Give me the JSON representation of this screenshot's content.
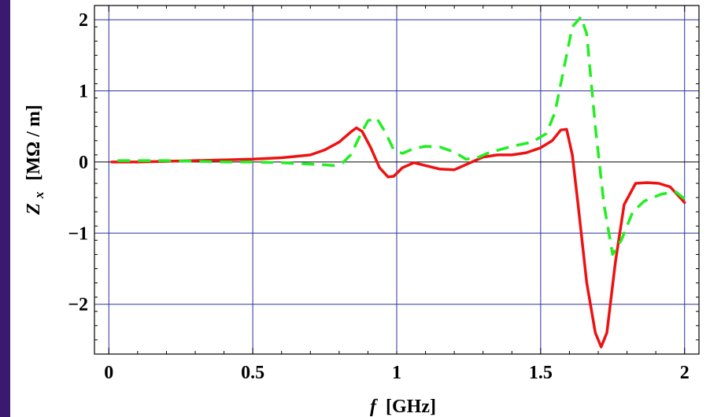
{
  "chart_data": {
    "type": "line",
    "xlabel": {
      "symbol": "f",
      "unit": "[GHz]"
    },
    "ylabel": {
      "symbol": "Z",
      "subscript": "x",
      "unit": "[MΩ / m]"
    },
    "xlim": [
      -0.05,
      2.05
    ],
    "ylim": [
      -2.7,
      2.2
    ],
    "x_ticks": [
      {
        "value": 0,
        "label": "0"
      },
      {
        "value": 0.5,
        "label": "0.5"
      },
      {
        "value": 1,
        "label": "1"
      },
      {
        "value": 1.5,
        "label": "1.5"
      },
      {
        "value": 2,
        "label": "2"
      }
    ],
    "y_ticks": [
      {
        "value": 2,
        "label": "2"
      },
      {
        "value": 1,
        "label": "1"
      },
      {
        "value": 0,
        "label": "0"
      },
      {
        "value": -1,
        "label": "−1"
      },
      {
        "value": -2,
        "label": "−2"
      }
    ],
    "grid": true,
    "series": [
      {
        "color": "#ee1111",
        "style": "solid",
        "points": [
          [
            0.01,
            0.0
          ],
          [
            0.1,
            0.0
          ],
          [
            0.2,
            0.01
          ],
          [
            0.3,
            0.02
          ],
          [
            0.4,
            0.03
          ],
          [
            0.5,
            0.04
          ],
          [
            0.55,
            0.05
          ],
          [
            0.6,
            0.06
          ],
          [
            0.65,
            0.08
          ],
          [
            0.7,
            0.1
          ],
          [
            0.75,
            0.17
          ],
          [
            0.8,
            0.28
          ],
          [
            0.84,
            0.42
          ],
          [
            0.86,
            0.48
          ],
          [
            0.88,
            0.43
          ],
          [
            0.91,
            0.2
          ],
          [
            0.94,
            -0.08
          ],
          [
            0.97,
            -0.21
          ],
          [
            0.99,
            -0.2
          ],
          [
            1.02,
            -0.08
          ],
          [
            1.06,
            -0.01
          ],
          [
            1.1,
            -0.05
          ],
          [
            1.15,
            -0.1
          ],
          [
            1.2,
            -0.11
          ],
          [
            1.25,
            -0.02
          ],
          [
            1.3,
            0.07
          ],
          [
            1.35,
            0.1
          ],
          [
            1.4,
            0.1
          ],
          [
            1.45,
            0.13
          ],
          [
            1.5,
            0.2
          ],
          [
            1.54,
            0.3
          ],
          [
            1.57,
            0.45
          ],
          [
            1.59,
            0.46
          ],
          [
            1.61,
            0.1
          ],
          [
            1.63,
            -0.6
          ],
          [
            1.66,
            -1.7
          ],
          [
            1.69,
            -2.4
          ],
          [
            1.71,
            -2.6
          ],
          [
            1.73,
            -2.4
          ],
          [
            1.76,
            -1.4
          ],
          [
            1.79,
            -0.6
          ],
          [
            1.83,
            -0.3
          ],
          [
            1.87,
            -0.29
          ],
          [
            1.91,
            -0.3
          ],
          [
            1.95,
            -0.35
          ],
          [
            2.0,
            -0.57
          ]
        ]
      },
      {
        "color": "#22ee22",
        "style": "dashed",
        "points": [
          [
            0.03,
            0.02
          ],
          [
            0.1,
            0.02
          ],
          [
            0.2,
            0.02
          ],
          [
            0.3,
            0.01
          ],
          [
            0.4,
            0.0
          ],
          [
            0.5,
            0.0
          ],
          [
            0.6,
            -0.01
          ],
          [
            0.65,
            -0.02
          ],
          [
            0.7,
            -0.03
          ],
          [
            0.75,
            -0.04
          ],
          [
            0.78,
            -0.05
          ],
          [
            0.81,
            -0.02
          ],
          [
            0.84,
            0.1
          ],
          [
            0.87,
            0.35
          ],
          [
            0.9,
            0.58
          ],
          [
            0.93,
            0.62
          ],
          [
            0.96,
            0.42
          ],
          [
            0.99,
            0.17
          ],
          [
            1.02,
            0.12
          ],
          [
            1.06,
            0.19
          ],
          [
            1.1,
            0.22
          ],
          [
            1.15,
            0.21
          ],
          [
            1.2,
            0.14
          ],
          [
            1.24,
            0.04
          ],
          [
            1.28,
            0.06
          ],
          [
            1.32,
            0.13
          ],
          [
            1.4,
            0.22
          ],
          [
            1.47,
            0.28
          ],
          [
            1.52,
            0.4
          ],
          [
            1.55,
            0.7
          ],
          [
            1.58,
            1.3
          ],
          [
            1.61,
            1.9
          ],
          [
            1.64,
            2.04
          ],
          [
            1.66,
            1.8
          ],
          [
            1.69,
            0.5
          ],
          [
            1.72,
            -0.6
          ],
          [
            1.75,
            -1.3
          ],
          [
            1.78,
            -1.1
          ],
          [
            1.82,
            -0.7
          ],
          [
            1.86,
            -0.55
          ],
          [
            1.92,
            -0.45
          ],
          [
            1.97,
            -0.42
          ],
          [
            2.0,
            -0.52
          ]
        ]
      }
    ]
  }
}
